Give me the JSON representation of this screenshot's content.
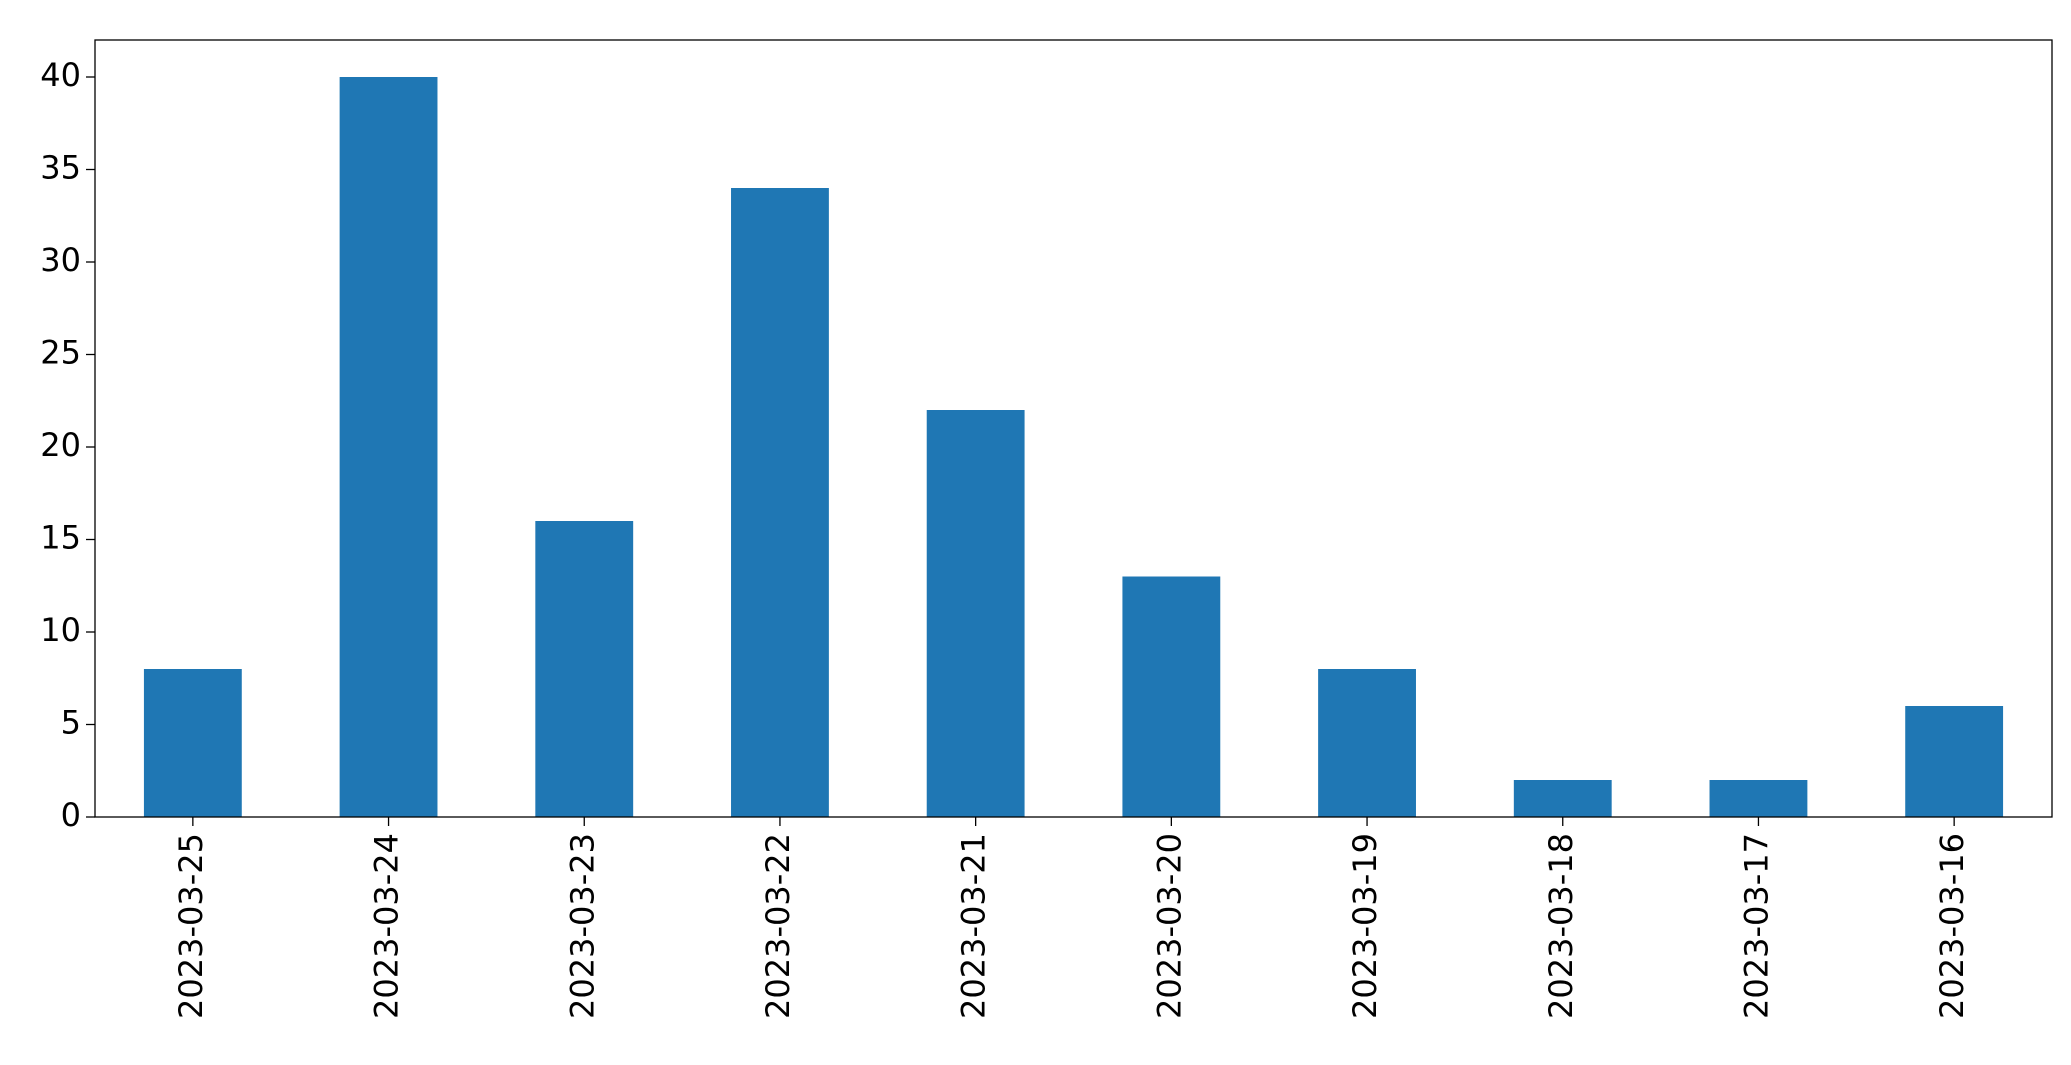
{
  "chart_data": {
    "type": "bar",
    "categories": [
      "2023-03-25",
      "2023-03-24",
      "2023-03-23",
      "2023-03-22",
      "2023-03-21",
      "2023-03-20",
      "2023-03-19",
      "2023-03-18",
      "2023-03-17",
      "2023-03-16"
    ],
    "values": [
      8,
      40,
      16,
      34,
      22,
      13,
      8,
      2,
      2,
      6
    ],
    "color": "#1f77b4",
    "ylim": [
      0,
      42
    ],
    "yticks": [
      0,
      5,
      10,
      15,
      20,
      25,
      30,
      35,
      40
    ],
    "grid": false
  }
}
